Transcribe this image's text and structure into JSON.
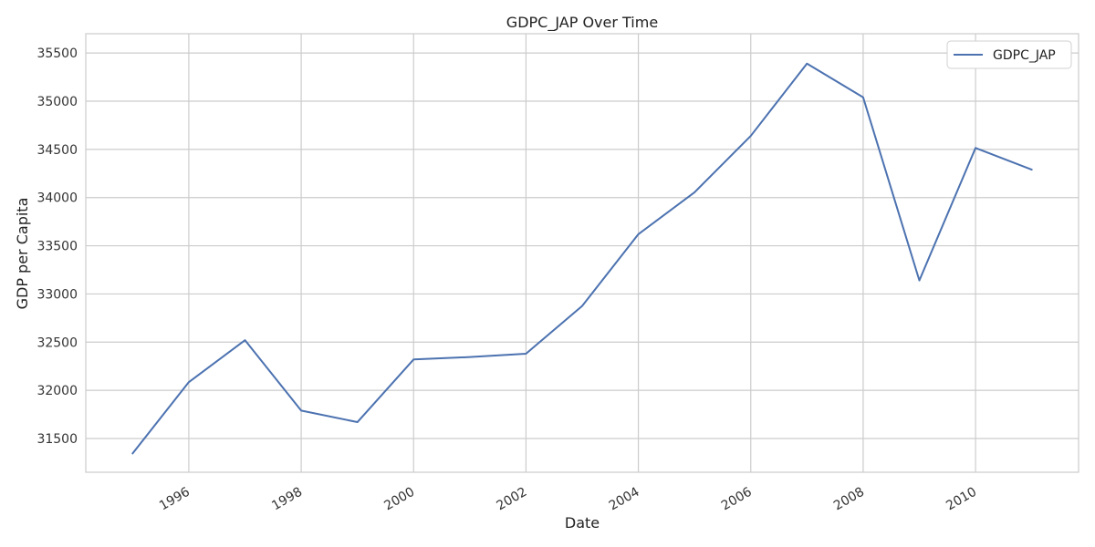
{
  "chart_data": {
    "type": "line",
    "title": "GDPC_JAP Over Time",
    "xlabel": "Date",
    "ylabel": "GDP per Capita",
    "x_ticks": [
      "1996",
      "1998",
      "2000",
      "2002",
      "2004",
      "2006",
      "2008",
      "2010"
    ],
    "y_ticks": [
      "31500",
      "32000",
      "32500",
      "33000",
      "33500",
      "34000",
      "34500",
      "35000",
      "35500"
    ],
    "xlim": [
      "1994-03",
      "2011-11"
    ],
    "ylim": [
      31150,
      35700
    ],
    "grid": true,
    "legend_position": "top-right",
    "colors": {
      "series": "#4c72b0",
      "grid": "#cccccc",
      "axes": "#cccccc"
    },
    "series": [
      {
        "name": "GDPC_JAP",
        "x": [
          "1995",
          "1996",
          "1997",
          "1998",
          "1999",
          "2000",
          "2001",
          "2002",
          "2003",
          "2004",
          "2005",
          "2006",
          "2007",
          "2008",
          "2009",
          "2010",
          "2011"
        ],
        "y": [
          31345,
          32085,
          32520,
          31790,
          31670,
          32320,
          32345,
          32380,
          32875,
          33620,
          34055,
          34640,
          35390,
          35040,
          33140,
          34515,
          34290
        ]
      }
    ]
  }
}
